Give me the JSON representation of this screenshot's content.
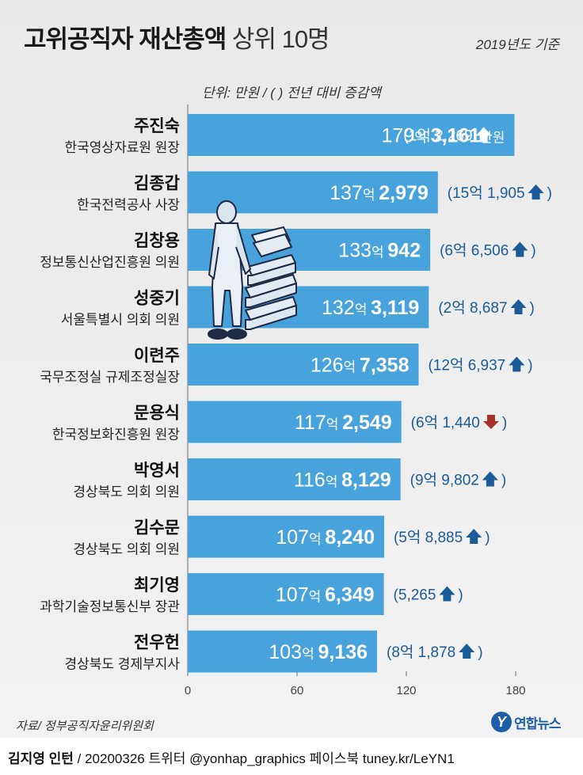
{
  "header": {
    "title_bold": "고위공직자 재산총액",
    "title_light": "상위 10명",
    "basis": "2019년도 기준",
    "unit": "단위: 만원 / ( ) 전년 대비 증감액"
  },
  "colors": {
    "bar": "#48a3dd",
    "label_blue": "#1a5b98",
    "up_arrow": "#1a5b98",
    "down_arrow": "#a5332b",
    "axis": "#6d6d6d"
  },
  "chart_data": {
    "type": "bar",
    "orientation": "horizontal",
    "xlim": [
      0,
      180
    ],
    "x_ticks": [
      "0",
      "60",
      "120",
      "180"
    ],
    "rows": [
      {
        "name": "주진숙",
        "title": "한국영상자료원 원장",
        "value": 179.3161,
        "eok": "179",
        "man": "3,161",
        "man_unit": "만원",
        "change": "(1억 2,269",
        "direction": "up"
      },
      {
        "name": "김종갑",
        "title": "한국전력공사 사장",
        "value": 137.2979,
        "eok": "137",
        "man": "2,979",
        "man_unit": "",
        "change": "(15억 1,905",
        "direction": "up"
      },
      {
        "name": "김창용",
        "title": "정보통신산업진흥원 의원",
        "value": 133.0942,
        "eok": "133",
        "man": "942",
        "man_unit": "",
        "change": "(6억 6,506",
        "direction": "up"
      },
      {
        "name": "성중기",
        "title": "서울특별시 의회 의원",
        "value": 132.3119,
        "eok": "132",
        "man": "3,119",
        "man_unit": "",
        "change": "(2억 8,687",
        "direction": "up"
      },
      {
        "name": "이련주",
        "title": "국무조정실 규제조정실장",
        "value": 126.7358,
        "eok": "126",
        "man": "7,358",
        "man_unit": "",
        "change": "(12억 6,937",
        "direction": "up"
      },
      {
        "name": "문용식",
        "title": "한국정보화진흥원 원장",
        "value": 117.2549,
        "eok": "117",
        "man": "2,549",
        "man_unit": "",
        "change": "(6억 1,440",
        "direction": "down"
      },
      {
        "name": "박영서",
        "title": "경상북도 의회 의원",
        "value": 116.8129,
        "eok": "116",
        "man": "8,129",
        "man_unit": "",
        "change": "(9억 9,802",
        "direction": "up"
      },
      {
        "name": "김수문",
        "title": "경상북도 의회 의원",
        "value": 107.824,
        "eok": "107",
        "man": "8,240",
        "man_unit": "",
        "change": "(5억 8,885",
        "direction": "up"
      },
      {
        "name": "최기영",
        "title": "과학기술정보통신부 장관",
        "value": 107.6349,
        "eok": "107",
        "man": "6,349",
        "man_unit": "",
        "change": "(5,265",
        "direction": "up"
      },
      {
        "name": "전우헌",
        "title": "경상북도 경제부지사",
        "value": 103.9136,
        "eok": "103",
        "man": "9,136",
        "man_unit": "",
        "change": "(8억 1,878",
        "direction": "up"
      }
    ],
    "eok_unit": "억",
    "close_paren": ")"
  },
  "footer": {
    "source": "자료/ 정부공직자윤리위원회",
    "logo_mark": "Y",
    "logo_text": "연합뉴스",
    "author": "김지영 인턴",
    "credits": " / 20200326 트위터 @yonhap_graphics  페이스북 tuney.kr/LeYN1"
  }
}
